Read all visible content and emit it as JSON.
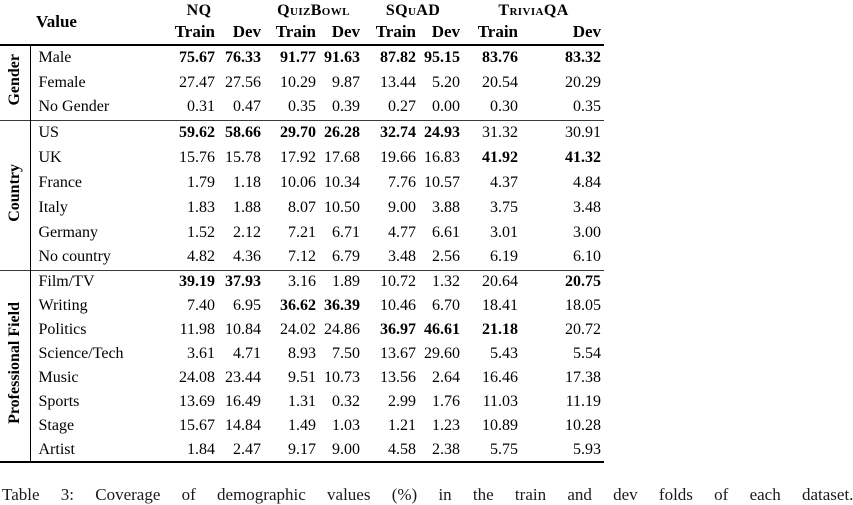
{
  "table": {
    "value_header": "Value",
    "datasets": [
      "NQ",
      "QuizBowl",
      "SQuAD",
      "TriviaQA"
    ],
    "subheaders": [
      "Train",
      "Dev"
    ],
    "groups": [
      {
        "label": "Gender",
        "rows": [
          {
            "label": "Male",
            "values": [
              "75.67",
              "76.33",
              "91.77",
              "91.63",
              "87.82",
              "95.15",
              "83.76",
              "83.32"
            ],
            "bold": [
              0,
              1,
              2,
              3,
              4,
              5,
              6,
              7
            ]
          },
          {
            "label": "Female",
            "values": [
              "27.47",
              "27.56",
              "10.29",
              "9.87",
              "13.44",
              "5.20",
              "20.54",
              "20.29"
            ],
            "bold": []
          },
          {
            "label": "No Gender",
            "values": [
              "0.31",
              "0.47",
              "0.35",
              "0.39",
              "0.27",
              "0.00",
              "0.30",
              "0.35"
            ],
            "bold": []
          }
        ]
      },
      {
        "label": "Country",
        "rows": [
          {
            "label": "US",
            "values": [
              "59.62",
              "58.66",
              "29.70",
              "26.28",
              "32.74",
              "24.93",
              "31.32",
              "30.91"
            ],
            "bold": [
              0,
              1,
              2,
              3,
              4,
              5
            ]
          },
          {
            "label": "UK",
            "values": [
              "15.76",
              "15.78",
              "17.92",
              "17.68",
              "19.66",
              "16.83",
              "41.92",
              "41.32"
            ],
            "bold": [
              6,
              7
            ]
          },
          {
            "label": "France",
            "values": [
              "1.79",
              "1.18",
              "10.06",
              "10.34",
              "7.76",
              "10.57",
              "4.37",
              "4.84"
            ],
            "bold": []
          },
          {
            "label": "Italy",
            "values": [
              "1.83",
              "1.88",
              "8.07",
              "10.50",
              "9.00",
              "3.88",
              "3.75",
              "3.48"
            ],
            "bold": []
          },
          {
            "label": "Germany",
            "values": [
              "1.52",
              "2.12",
              "7.21",
              "6.71",
              "4.77",
              "6.61",
              "3.01",
              "3.00"
            ],
            "bold": []
          },
          {
            "label": "No country",
            "values": [
              "4.82",
              "4.36",
              "7.12",
              "6.79",
              "3.48",
              "2.56",
              "6.19",
              "6.10"
            ],
            "bold": []
          }
        ]
      },
      {
        "label": "Professional Field",
        "rows": [
          {
            "label": "Film/TV",
            "values": [
              "39.19",
              "37.93",
              "3.16",
              "1.89",
              "10.72",
              "1.32",
              "20.64",
              "20.75"
            ],
            "bold": [
              0,
              1,
              7
            ]
          },
          {
            "label": "Writing",
            "values": [
              "7.40",
              "6.95",
              "36.62",
              "36.39",
              "10.46",
              "6.70",
              "18.41",
              "18.05"
            ],
            "bold": [
              2,
              3
            ]
          },
          {
            "label": "Politics",
            "values": [
              "11.98",
              "10.84",
              "24.02",
              "24.86",
              "36.97",
              "46.61",
              "21.18",
              "20.72"
            ],
            "bold": [
              4,
              5,
              6
            ]
          },
          {
            "label": "Science/Tech",
            "values": [
              "3.61",
              "4.71",
              "8.93",
              "7.50",
              "13.67",
              "29.60",
              "5.43",
              "5.54"
            ],
            "bold": []
          },
          {
            "label": "Music",
            "values": [
              "24.08",
              "23.44",
              "9.51",
              "10.73",
              "13.56",
              "2.64",
              "16.46",
              "17.38"
            ],
            "bold": []
          },
          {
            "label": "Sports",
            "values": [
              "13.69",
              "16.49",
              "1.31",
              "0.32",
              "2.99",
              "1.76",
              "11.03",
              "11.19"
            ],
            "bold": []
          },
          {
            "label": "Stage",
            "values": [
              "15.67",
              "14.84",
              "1.49",
              "1.03",
              "1.21",
              "1.23",
              "10.89",
              "10.28"
            ],
            "bold": []
          },
          {
            "label": "Artist",
            "values": [
              "1.84",
              "2.47",
              "9.17",
              "9.00",
              "4.58",
              "2.38",
              "5.75",
              "5.93"
            ],
            "bold": []
          }
        ]
      }
    ]
  },
  "caption": "Table 3: Coverage of demographic values (%) in the train and dev folds of each dataset."
}
